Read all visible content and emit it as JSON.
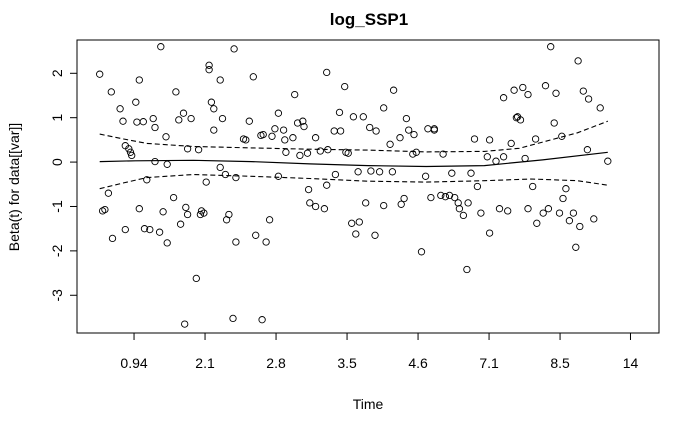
{
  "chart_data": {
    "type": "scatter",
    "title": "log_SSP1",
    "xlabel": "Time",
    "ylabel": "Beta(t) for data[[var]]",
    "xlim": [
      0,
      1
    ],
    "ylim": [
      -3.85,
      2.75
    ],
    "x_scale": "transformed time (rank)",
    "x_ticks": [
      {
        "pos": 0.098,
        "label": "0.94"
      },
      {
        "pos": 0.22,
        "label": "2.1"
      },
      {
        "pos": 0.342,
        "label": "2.8"
      },
      {
        "pos": 0.464,
        "label": "3.5"
      },
      {
        "pos": 0.586,
        "label": "4.6"
      },
      {
        "pos": 0.708,
        "label": "7.1"
      },
      {
        "pos": 0.83,
        "label": "8.5"
      },
      {
        "pos": 0.951,
        "label": "14"
      }
    ],
    "y_ticks": [
      -3,
      -2,
      -1,
      0,
      1,
      2
    ],
    "grid": false,
    "series": [
      {
        "type": "scatter",
        "points": [
          [
            0.039,
            1.98
          ],
          [
            0.044,
            -1.1
          ],
          [
            0.048,
            -1.07
          ],
          [
            0.054,
            -0.7
          ],
          [
            0.059,
            1.58
          ],
          [
            0.061,
            -1.72
          ],
          [
            0.074,
            1.2
          ],
          [
            0.079,
            0.92
          ],
          [
            0.083,
            0.37
          ],
          [
            0.083,
            -1.52
          ],
          [
            0.089,
            0.3
          ],
          [
            0.092,
            0.22
          ],
          [
            0.094,
            0.15
          ],
          [
            0.101,
            1.35
          ],
          [
            0.103,
            0.9
          ],
          [
            0.107,
            1.85
          ],
          [
            0.107,
            -1.05
          ],
          [
            0.114,
            0.91
          ],
          [
            0.116,
            -1.5
          ],
          [
            0.12,
            -0.4
          ],
          [
            0.125,
            -1.52
          ],
          [
            0.131,
            0.98
          ],
          [
            0.134,
            0.01
          ],
          [
            0.134,
            0.78
          ],
          [
            0.142,
            -1.58
          ],
          [
            0.144,
            2.6
          ],
          [
            0.148,
            -1.12
          ],
          [
            0.153,
            0.57
          ],
          [
            0.155,
            -1.82
          ],
          [
            0.155,
            -0.05
          ],
          [
            0.166,
            -0.8
          ],
          [
            0.17,
            1.58
          ],
          [
            0.175,
            0.95
          ],
          [
            0.178,
            -1.4
          ],
          [
            0.183,
            1.1
          ],
          [
            0.185,
            -3.65
          ],
          [
            0.187,
            -1.02
          ],
          [
            0.19,
            0.3
          ],
          [
            0.19,
            -1.18
          ],
          [
            0.196,
            0.98
          ],
          [
            0.205,
            -2.62
          ],
          [
            0.209,
            0.28
          ],
          [
            0.212,
            -1.18
          ],
          [
            0.214,
            -1.1
          ],
          [
            0.218,
            -1.15
          ],
          [
            0.222,
            -0.45
          ],
          [
            0.227,
            2.08
          ],
          [
            0.227,
            2.18
          ],
          [
            0.231,
            1.35
          ],
          [
            0.235,
            1.2
          ],
          [
            0.235,
            0.72
          ],
          [
            0.246,
            1.85
          ],
          [
            0.246,
            -0.12
          ],
          [
            0.25,
            0.98
          ],
          [
            0.255,
            -0.28
          ],
          [
            0.257,
            -1.3
          ],
          [
            0.261,
            -1.18
          ],
          [
            0.268,
            -3.52
          ],
          [
            0.27,
            2.55
          ],
          [
            0.273,
            -0.35
          ],
          [
            0.273,
            -1.8
          ],
          [
            0.286,
            0.52
          ],
          [
            0.29,
            0.5
          ],
          [
            0.296,
            0.92
          ],
          [
            0.303,
            1.92
          ],
          [
            0.307,
            -1.65
          ],
          [
            0.316,
            0.6
          ],
          [
            0.318,
            -3.55
          ],
          [
            0.32,
            0.62
          ],
          [
            0.325,
            -1.8
          ],
          [
            0.331,
            -1.3
          ],
          [
            0.335,
            0.58
          ],
          [
            0.34,
            0.75
          ],
          [
            0.346,
            1.1
          ],
          [
            0.346,
            -0.32
          ],
          [
            0.355,
            0.72
          ],
          [
            0.357,
            0.5
          ],
          [
            0.359,
            0.22
          ],
          [
            0.371,
            0.55
          ],
          [
            0.374,
            1.52
          ],
          [
            0.379,
            0.88
          ],
          [
            0.383,
            0.15
          ],
          [
            0.388,
            0.92
          ],
          [
            0.39,
            0.8
          ],
          [
            0.396,
            0.2
          ],
          [
            0.398,
            -0.62
          ],
          [
            0.4,
            -0.92
          ],
          [
            0.41,
            0.55
          ],
          [
            0.41,
            -1.0
          ],
          [
            0.418,
            0.25
          ],
          [
            0.425,
            -1.05
          ],
          [
            0.429,
            2.02
          ],
          [
            0.429,
            -0.52
          ],
          [
            0.431,
            0.28
          ],
          [
            0.442,
            0.7
          ],
          [
            0.444,
            -0.28
          ],
          [
            0.451,
            1.12
          ],
          [
            0.453,
            0.7
          ],
          [
            0.46,
            1.7
          ],
          [
            0.462,
            0.22
          ],
          [
            0.466,
            0.2
          ],
          [
            0.472,
            -1.38
          ],
          [
            0.475,
            1.02
          ],
          [
            0.479,
            -1.62
          ],
          [
            0.483,
            -0.22
          ],
          [
            0.485,
            -1.35
          ],
          [
            0.492,
            1.02
          ],
          [
            0.496,
            -0.92
          ],
          [
            0.503,
            0.78
          ],
          [
            0.505,
            -0.2
          ],
          [
            0.512,
            -1.65
          ],
          [
            0.514,
            0.7
          ],
          [
            0.52,
            -0.22
          ],
          [
            0.527,
            1.22
          ],
          [
            0.527,
            -0.98
          ],
          [
            0.538,
            0.4
          ],
          [
            0.542,
            -0.22
          ],
          [
            0.544,
            1.62
          ],
          [
            0.555,
            0.55
          ],
          [
            0.557,
            -0.95
          ],
          [
            0.562,
            -0.82
          ],
          [
            0.566,
            0.98
          ],
          [
            0.57,
            0.72
          ],
          [
            0.577,
            0.18
          ],
          [
            0.579,
            0.62
          ],
          [
            0.583,
            0.22
          ],
          [
            0.592,
            -2.02
          ],
          [
            0.599,
            -0.32
          ],
          [
            0.603,
            0.75
          ],
          [
            0.608,
            -0.8
          ],
          [
            0.614,
            0.75
          ],
          [
            0.614,
            0.72
          ],
          [
            0.625,
            -0.75
          ],
          [
            0.629,
            0.18
          ],
          [
            0.633,
            -0.78
          ],
          [
            0.64,
            -0.75
          ],
          [
            0.644,
            -0.25
          ],
          [
            0.649,
            -0.8
          ],
          [
            0.655,
            -0.92
          ],
          [
            0.657,
            -1.05
          ],
          [
            0.664,
            -1.2
          ],
          [
            0.67,
            -2.42
          ],
          [
            0.672,
            -0.92
          ],
          [
            0.677,
            -0.25
          ],
          [
            0.683,
            0.52
          ],
          [
            0.688,
            -0.55
          ],
          [
            0.694,
            -1.15
          ],
          [
            0.705,
            0.12
          ],
          [
            0.709,
            0.5
          ],
          [
            0.709,
            -1.6
          ],
          [
            0.72,
            0.02
          ],
          [
            0.726,
            -1.05
          ],
          [
            0.733,
            1.45
          ],
          [
            0.733,
            0.12
          ],
          [
            0.74,
            -1.1
          ],
          [
            0.746,
            0.42
          ],
          [
            0.751,
            1.62
          ],
          [
            0.755,
            1.0
          ],
          [
            0.757,
            1.02
          ],
          [
            0.762,
            0.95
          ],
          [
            0.766,
            1.68
          ],
          [
            0.77,
            0.08
          ],
          [
            0.775,
            1.52
          ],
          [
            0.775,
            -1.05
          ],
          [
            0.783,
            -0.55
          ],
          [
            0.788,
            0.52
          ],
          [
            0.79,
            -1.38
          ],
          [
            0.801,
            -1.15
          ],
          [
            0.805,
            1.72
          ],
          [
            0.81,
            -1.05
          ],
          [
            0.814,
            2.6
          ],
          [
            0.82,
            0.88
          ],
          [
            0.823,
            1.55
          ],
          [
            0.829,
            -1.15
          ],
          [
            0.833,
            0.58
          ],
          [
            0.835,
            -0.82
          ],
          [
            0.84,
            -0.6
          ],
          [
            0.846,
            -1.32
          ],
          [
            0.853,
            -1.15
          ],
          [
            0.857,
            -1.92
          ],
          [
            0.861,
            2.28
          ],
          [
            0.864,
            -1.45
          ],
          [
            0.87,
            1.6
          ],
          [
            0.877,
            0.28
          ],
          [
            0.879,
            1.42
          ],
          [
            0.888,
            -1.28
          ],
          [
            0.899,
            1.22
          ],
          [
            0.912,
            0.02
          ]
        ]
      },
      {
        "type": "line",
        "style": "solid",
        "points": [
          [
            0.039,
            0.01
          ],
          [
            0.1,
            0.03
          ],
          [
            0.2,
            0.04
          ],
          [
            0.3,
            0.01
          ],
          [
            0.4,
            -0.04
          ],
          [
            0.5,
            -0.08
          ],
          [
            0.6,
            -0.1
          ],
          [
            0.7,
            -0.08
          ],
          [
            0.8,
            0.05
          ],
          [
            0.912,
            0.22
          ]
        ]
      },
      {
        "type": "line",
        "style": "dashed",
        "points": [
          [
            0.039,
            0.63
          ],
          [
            0.08,
            0.52
          ],
          [
            0.12,
            0.42
          ],
          [
            0.2,
            0.35
          ],
          [
            0.3,
            0.32
          ],
          [
            0.4,
            0.29
          ],
          [
            0.5,
            0.27
          ],
          [
            0.6,
            0.23
          ],
          [
            0.7,
            0.24
          ],
          [
            0.76,
            0.31
          ],
          [
            0.8,
            0.45
          ],
          [
            0.86,
            0.66
          ],
          [
            0.912,
            0.92
          ]
        ]
      },
      {
        "type": "line",
        "style": "dashed",
        "points": [
          [
            0.039,
            -0.6
          ],
          [
            0.08,
            -0.47
          ],
          [
            0.12,
            -0.35
          ],
          [
            0.2,
            -0.28
          ],
          [
            0.3,
            -0.32
          ],
          [
            0.4,
            -0.37
          ],
          [
            0.5,
            -0.43
          ],
          [
            0.6,
            -0.45
          ],
          [
            0.7,
            -0.42
          ],
          [
            0.78,
            -0.38
          ],
          [
            0.86,
            -0.42
          ],
          [
            0.912,
            -0.52
          ]
        ]
      }
    ]
  }
}
